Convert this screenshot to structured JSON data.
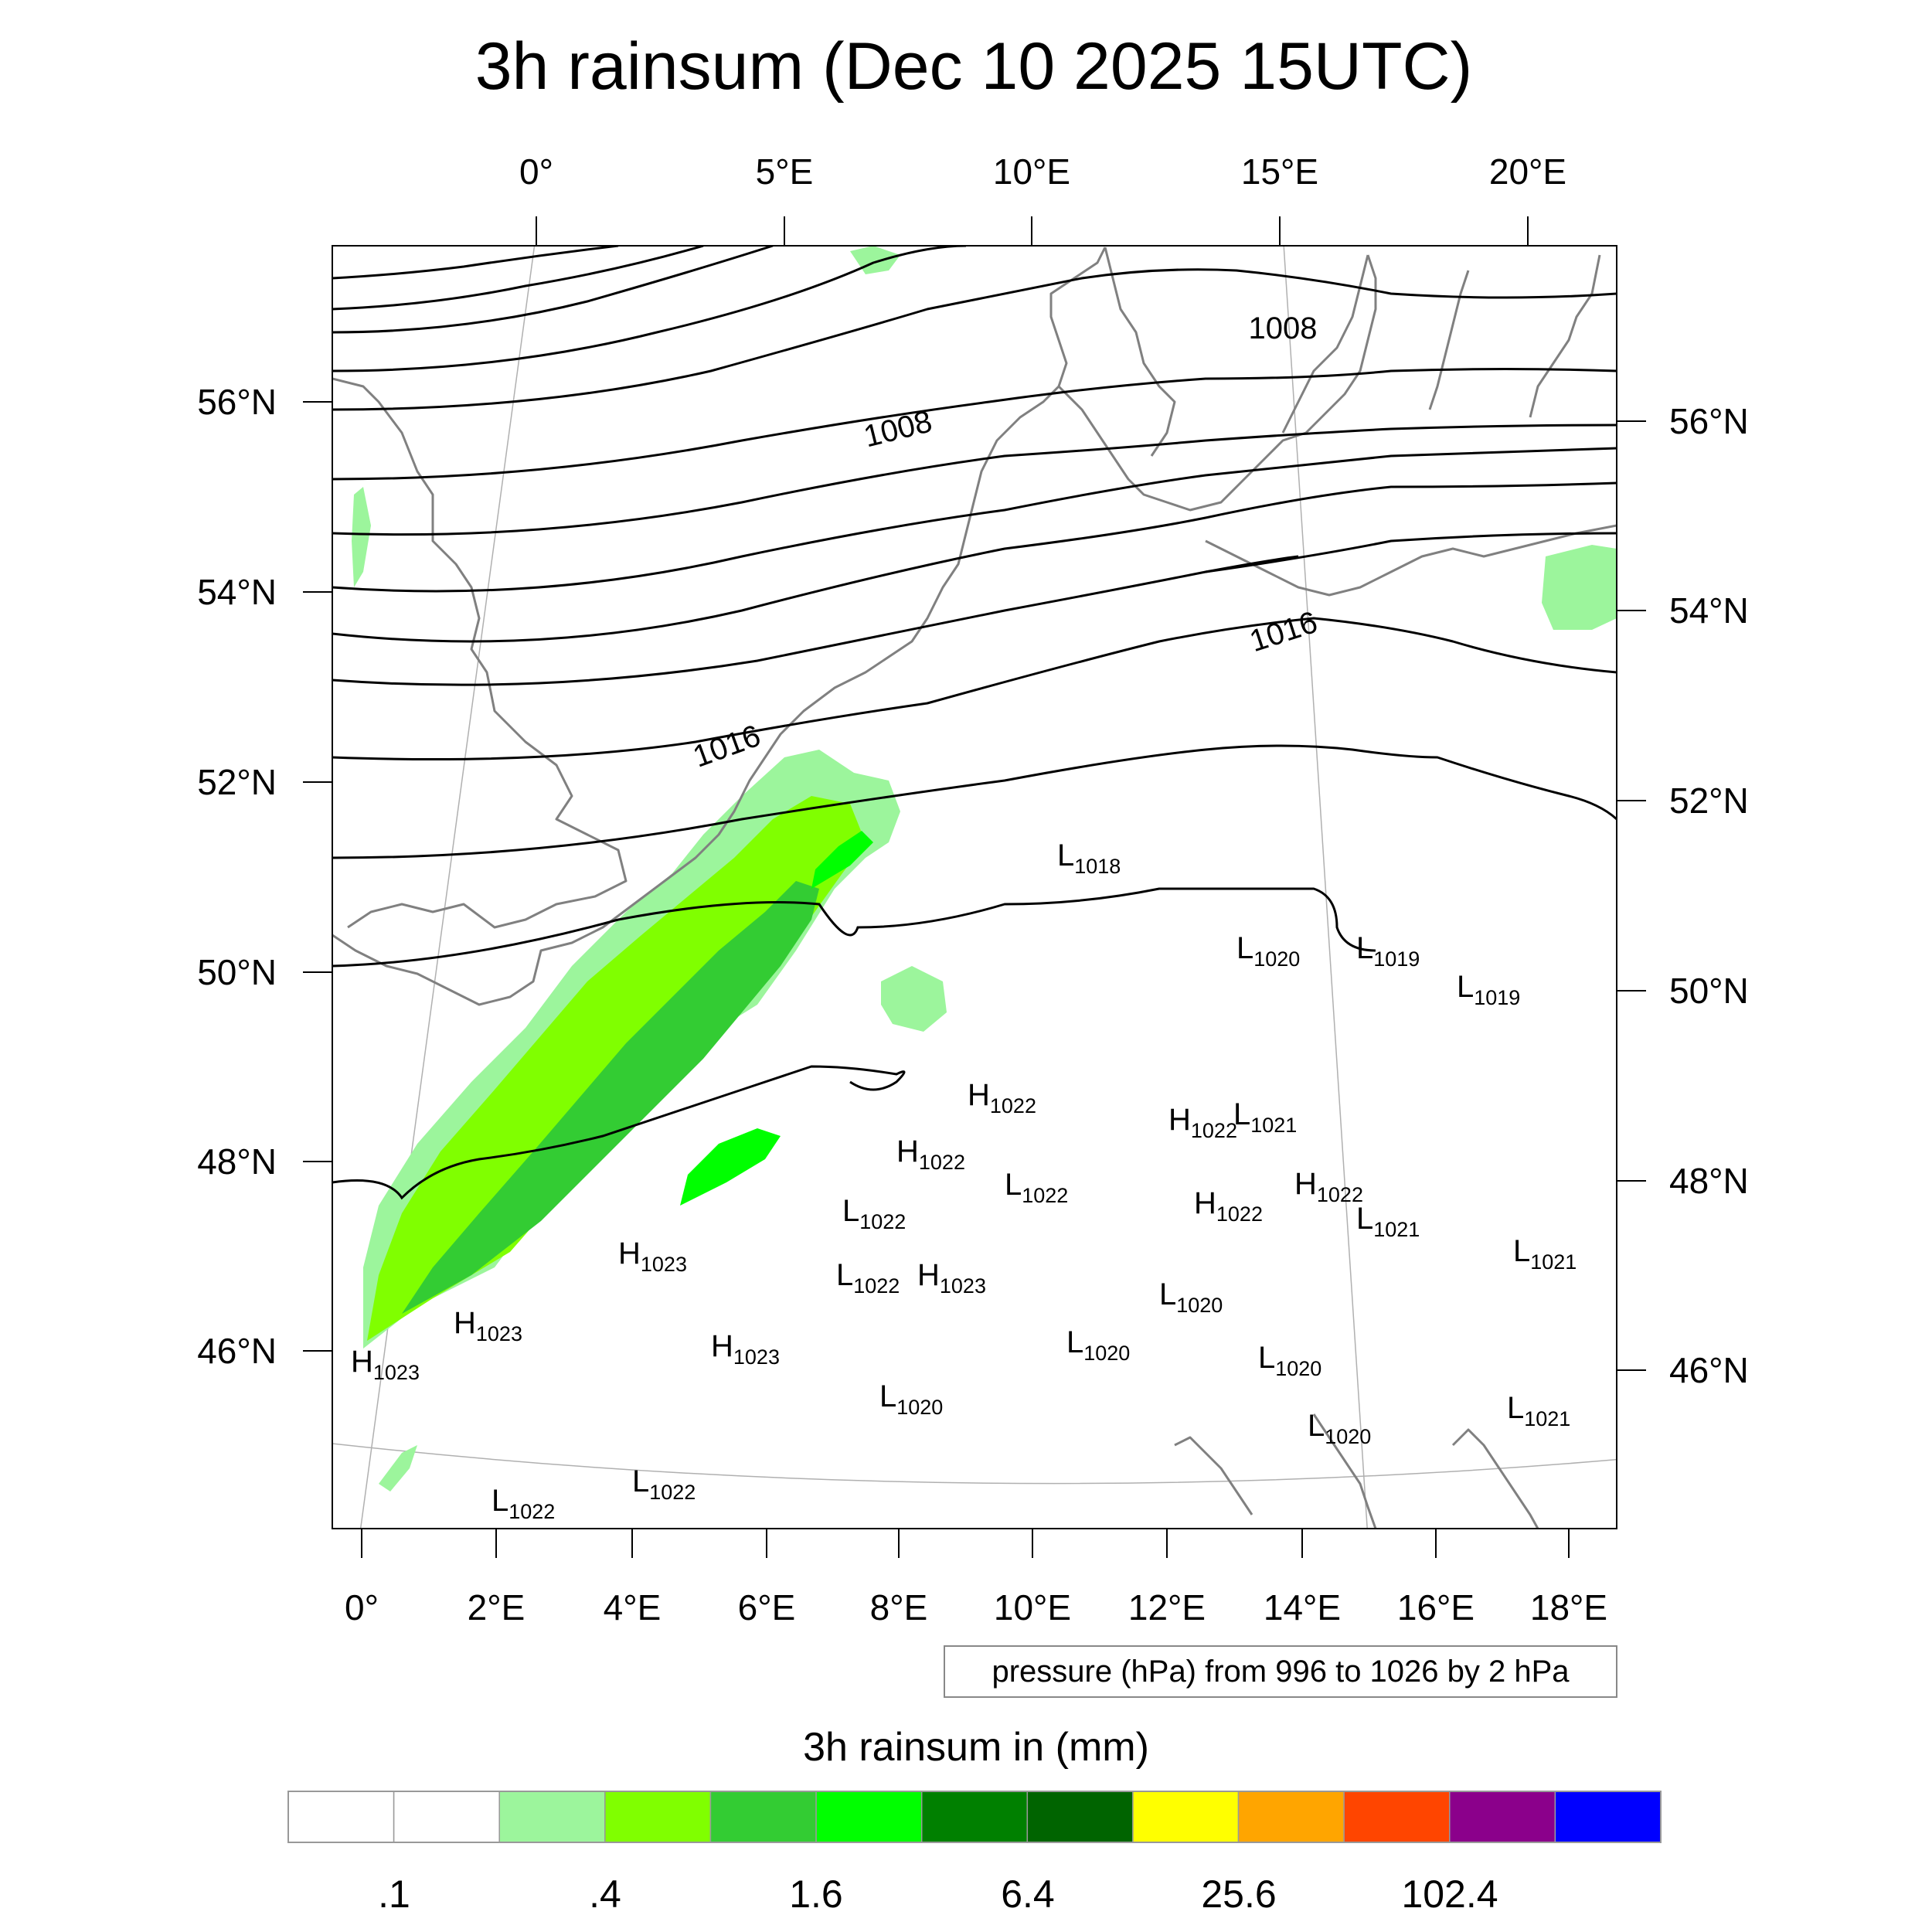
{
  "title": "3h rainsum (Dec 10 2025 15UTC)",
  "top_lon_ticks": [
    "0°",
    "5°E",
    "10°E",
    "15°E",
    "20°E"
  ],
  "bottom_lon_ticks": [
    "0°",
    "2°E",
    "4°E",
    "6°E",
    "8°E",
    "10°E",
    "12°E",
    "14°E",
    "16°E",
    "18°E"
  ],
  "left_lat_ticks": [
    "56°N",
    "54°N",
    "52°N",
    "50°N",
    "48°N",
    "46°N"
  ],
  "right_lat_ticks": [
    "56°N",
    "54°N",
    "52°N",
    "50°N",
    "48°N",
    "46°N"
  ],
  "isobar_labels": [
    "1008",
    "1008",
    "1016",
    "1016"
  ],
  "pressure_centers": [
    {
      "type": "L",
      "value": "1018"
    },
    {
      "type": "L",
      "value": "1020"
    },
    {
      "type": "L",
      "value": "1019"
    },
    {
      "type": "L",
      "value": "1019"
    },
    {
      "type": "H",
      "value": "1022"
    },
    {
      "type": "H",
      "value": "1022"
    },
    {
      "type": "L",
      "value": "1021"
    },
    {
      "type": "H",
      "value": "1022"
    },
    {
      "type": "L",
      "value": "1022"
    },
    {
      "type": "H",
      "value": "1022"
    },
    {
      "type": "L",
      "value": "1022"
    },
    {
      "type": "H",
      "value": "1022"
    },
    {
      "type": "L",
      "value": "1021"
    },
    {
      "type": "L",
      "value": "1021"
    },
    {
      "type": "H",
      "value": "1023"
    },
    {
      "type": "L",
      "value": "1022"
    },
    {
      "type": "H",
      "value": "1023"
    },
    {
      "type": "H",
      "value": "1023"
    },
    {
      "type": "L",
      "value": "1020"
    },
    {
      "type": "H",
      "value": "1023"
    },
    {
      "type": "H",
      "value": "1023"
    },
    {
      "type": "L",
      "value": "1020"
    },
    {
      "type": "L",
      "value": "1020"
    },
    {
      "type": "L",
      "value": "1020"
    },
    {
      "type": "L",
      "value": "1020"
    },
    {
      "type": "L",
      "value": "1021"
    },
    {
      "type": "L",
      "value": "1022"
    },
    {
      "type": "L",
      "value": "1022"
    }
  ],
  "contour_note": "pressure (hPa) from 996 to 1026 by 2 hPa",
  "colorbar": {
    "title": "3h rainsum in (mm)",
    "labels": [
      ".1",
      ".4",
      "1.6",
      "6.4",
      "25.6",
      "102.4"
    ],
    "colors": [
      "#ffffff",
      "#ffffff",
      "#9cf59c",
      "#80ff00",
      "#33cc33",
      "#00ff00",
      "#008000",
      "#006400",
      "#ffff00",
      "#ffa500",
      "#ff4500",
      "#8b008b",
      "#0000ff"
    ]
  },
  "rain_colors": {
    "light": "#9cf59c",
    "lime": "#80ff00",
    "medium": "#33cc33",
    "bright": "#00ff00"
  }
}
